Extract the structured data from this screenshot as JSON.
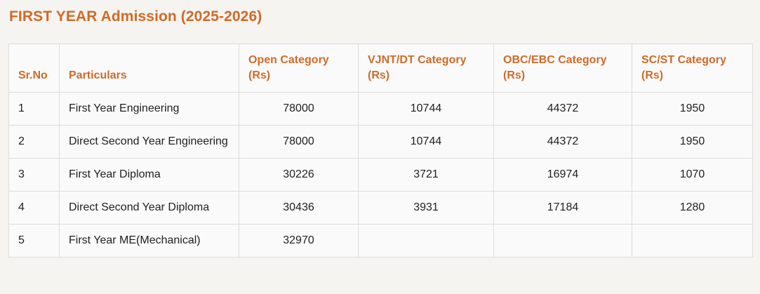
{
  "page": {
    "title": "FIRST YEAR Admission (2025-2026)"
  },
  "table": {
    "headers": [
      "Sr.No",
      "Particulars",
      "Open Category (Rs)",
      "VJNT/DT Category (Rs)",
      "OBC/EBC Category (Rs)",
      "SC/ST Category (Rs)"
    ],
    "rows": [
      [
        "1",
        "First Year Engineering",
        "78000",
        "10744",
        "44372",
        "1950"
      ],
      [
        "2",
        "Direct Second Year Engineering",
        "78000",
        "10744",
        "44372",
        "1950"
      ],
      [
        "3",
        "First Year Diploma",
        "30226",
        "3721",
        "16974",
        "1070"
      ],
      [
        "4",
        "Direct Second Year Diploma",
        "30436",
        "3931",
        "17184",
        "1280"
      ],
      [
        "5",
        "First Year ME(Mechanical)",
        "32970",
        "",
        "",
        ""
      ]
    ]
  },
  "colors": {
    "accent": "#d26a27",
    "page_background": "#f5f4f1",
    "cell_background": "#fafafa",
    "border": "#dcdcdc",
    "body_text": "#212121"
  }
}
